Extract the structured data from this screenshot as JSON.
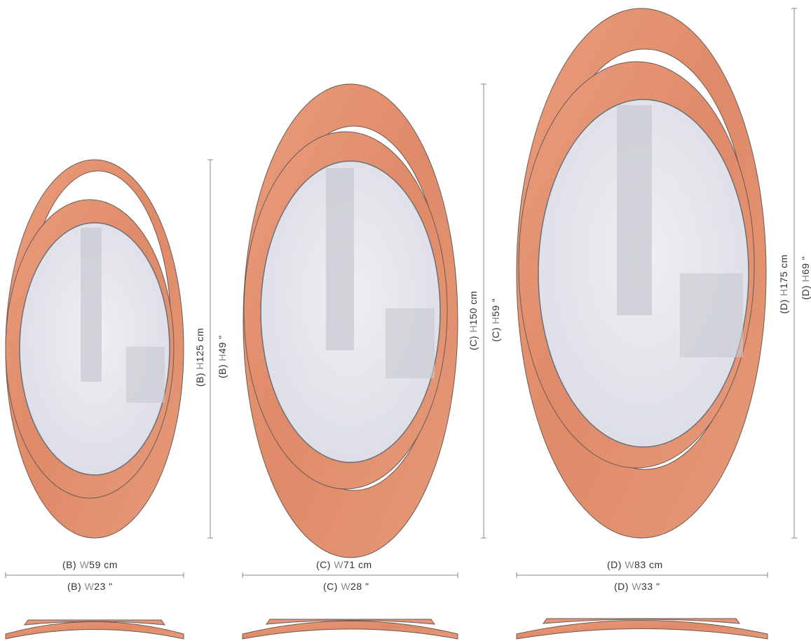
{
  "colors": {
    "frame": "#e08d6b",
    "frame_light": "#f0b298",
    "frame_dark": "#c8705080",
    "glass": "#e9eaf0",
    "dim_line": "#888888"
  },
  "mirrors": [
    {
      "id": "B",
      "width_cm_label": {
        "prefix": "(B) ",
        "letter": "W",
        "value": "59 cm"
      },
      "width_in_label": {
        "prefix": "(B) ",
        "letter": "W",
        "value": "23 \""
      },
      "height_cm_label": {
        "prefix": "(B) ",
        "letter": "H",
        "value": "125 cm"
      },
      "height_in_label": {
        "prefix": "(B) ",
        "letter": "H",
        "value": "49 \""
      }
    },
    {
      "id": "C",
      "width_cm_label": {
        "prefix": "(C) ",
        "letter": "W",
        "value": "71 cm"
      },
      "width_in_label": {
        "prefix": "(C) ",
        "letter": "W",
        "value": "28 \""
      },
      "height_cm_label": {
        "prefix": "(C) ",
        "letter": "H",
        "value": "150 cm"
      },
      "height_in_label": {
        "prefix": "(C) ",
        "letter": "H",
        "value": "59 \""
      }
    },
    {
      "id": "D",
      "width_cm_label": {
        "prefix": "(D) ",
        "letter": "W",
        "value": "83 cm"
      },
      "width_in_label": {
        "prefix": "(D) ",
        "letter": "W",
        "value": "33 \""
      },
      "height_cm_label": {
        "prefix": "(D) ",
        "letter": "H",
        "value": "175 cm"
      },
      "height_in_label": {
        "prefix": "(D) ",
        "letter": "H",
        "value": "69 \""
      }
    }
  ]
}
